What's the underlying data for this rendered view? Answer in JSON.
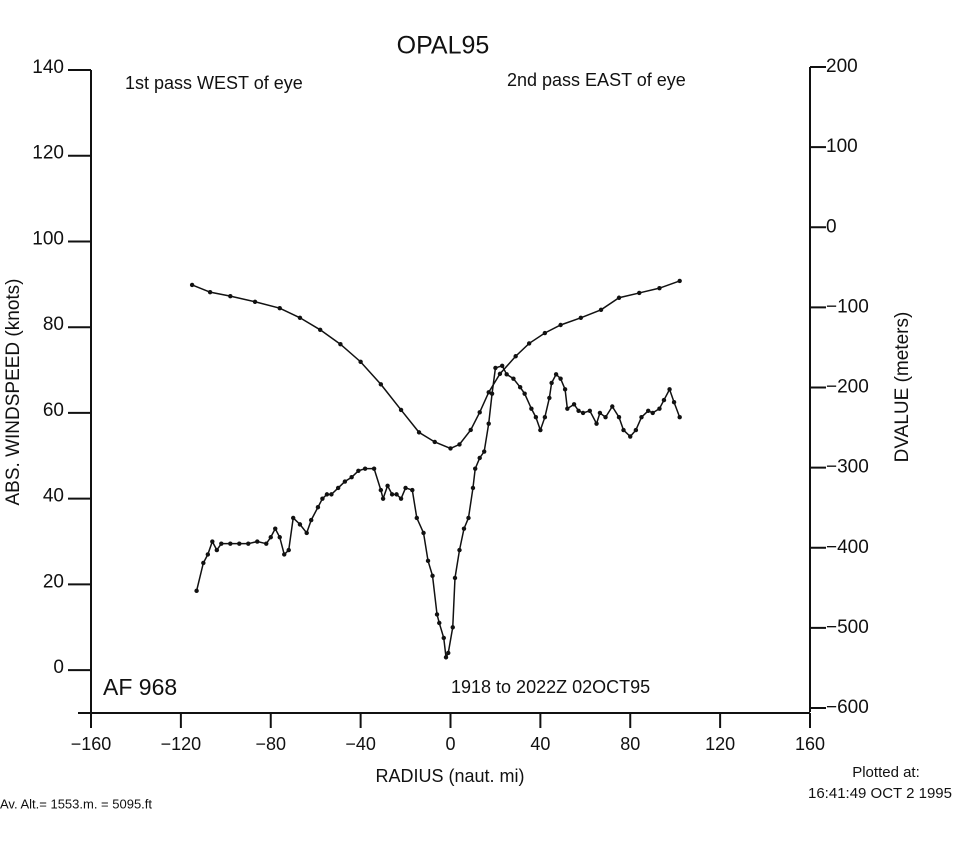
{
  "chart_data": {
    "type": "line",
    "title": "OPAL95",
    "annotations": [
      "1st pass WEST of eye",
      "2nd pass EAST of eye",
      "AF 968",
      "1918 to 2022Z 02OCT95"
    ],
    "xlabel": "RADIUS (naut. mi)",
    "ylabel": "ABS. WINDSPEED (knots)",
    "y2label": "DVALUE (meters)",
    "footer_left": "Av. Alt.= 1553.m. =  5095.ft",
    "footer_right": [
      "Plotted at:",
      "16:41:49 OCT  2 1995"
    ],
    "xlim": [
      -160,
      160
    ],
    "xticks": [
      {
        "value": -160,
        "label": "−160"
      },
      {
        "value": -120,
        "label": "−120"
      },
      {
        "value": -80,
        "label": "−80"
      },
      {
        "value": -40,
        "label": "−40"
      },
      0,
      40,
      80,
      120,
      160
    ],
    "ylim": [
      -10,
      140
    ],
    "yticks": [
      0,
      20,
      40,
      60,
      80,
      100,
      120,
      140
    ],
    "y2lim": [
      -600,
      200
    ],
    "y2ticks": [
      {
        "value": -600,
        "label": "−600"
      },
      {
        "value": -500,
        "label": "−500"
      },
      {
        "value": -400,
        "label": "−400"
      },
      {
        "value": -300,
        "label": "−300"
      },
      {
        "value": -200,
        "label": "−200"
      },
      {
        "value": -100,
        "label": "−100"
      },
      0,
      100,
      200
    ],
    "series": [
      {
        "name": "ABS. WINDSPEED",
        "color": "#111111",
        "x": [
          -113,
          -110,
          -108,
          -106,
          -104,
          -102,
          -98,
          -94,
          -90,
          -86,
          -82,
          -80,
          -78,
          -76,
          -74,
          -72,
          -70,
          -67,
          -64,
          -62,
          -59,
          -57,
          -55,
          -53,
          -50,
          -47,
          -44,
          -41,
          -38,
          -34,
          -31,
          -30,
          -28,
          -26,
          -24,
          -22,
          -20,
          -17,
          -15,
          -12,
          -10,
          -8,
          -6,
          -5,
          -3,
          -2,
          -1,
          1,
          2,
          4,
          6,
          8,
          10,
          11,
          13,
          15,
          17,
          18.5,
          20,
          23,
          25,
          28,
          31,
          33,
          36,
          38,
          40,
          42,
          44,
          45,
          47,
          49,
          51,
          52,
          55,
          57,
          59,
          62,
          65,
          66.5,
          69,
          72,
          75,
          77,
          80,
          82.5,
          85,
          88,
          90,
          93,
          95,
          97.5,
          99.5,
          102
        ],
        "values": [
          18.5,
          25,
          27,
          30,
          28,
          29.5,
          29.5,
          29.5,
          29.5,
          30,
          29.5,
          31,
          33,
          31,
          27,
          28,
          35.5,
          34,
          32,
          35,
          38,
          40,
          41,
          41,
          42.5,
          44,
          45,
          46.5,
          47,
          47,
          42,
          40,
          43,
          41,
          41,
          40,
          42.5,
          42,
          35.5,
          32,
          25.5,
          22,
          13,
          11,
          7.5,
          3,
          4,
          10,
          21.5,
          28,
          33,
          35.5,
          42.5,
          47,
          49.5,
          51,
          57.5,
          64.5,
          70.5,
          71,
          69,
          68,
          66,
          64.5,
          61,
          59,
          56,
          59,
          63.5,
          67,
          69,
          68,
          65.5,
          61,
          62,
          60.5,
          60,
          60.5,
          57.5,
          60,
          59,
          61.5,
          59,
          56,
          54.5,
          56,
          59,
          60.5,
          60,
          61,
          63,
          65.5,
          62.5,
          59
        ]
      },
      {
        "name": "DVALUE",
        "color": "#111111",
        "axis": "y2",
        "x": [
          -115,
          -107,
          -98,
          -87,
          -76,
          -67,
          -58,
          -49,
          -40,
          -31,
          -22,
          -14,
          -7,
          0,
          4,
          9,
          13,
          17,
          22,
          29,
          35,
          42,
          49,
          58,
          67,
          75,
          84,
          93,
          102
        ],
        "values": [
          -72,
          -81,
          -86,
          -93,
          -101,
          -113,
          -128,
          -146,
          -168,
          -196,
          -228,
          -256,
          -268,
          -276,
          -271,
          -253,
          -231,
          -206,
          -183,
          -161,
          -145,
          -132,
          -122,
          -113,
          -103,
          -88,
          -82,
          -76,
          -67
        ]
      }
    ]
  }
}
